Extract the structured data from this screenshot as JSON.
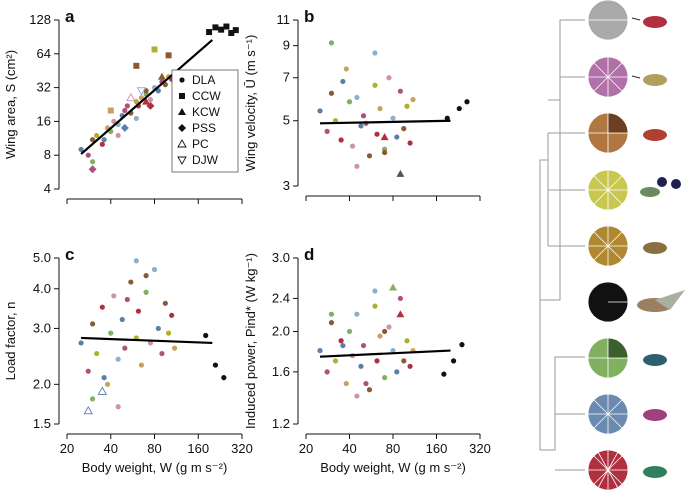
{
  "chart_data": [
    {
      "type": "scatter",
      "panel": "a",
      "ylabel": "Wing area, S (cm²)",
      "xlog": true,
      "ylog": true,
      "xlim": [
        20,
        320
      ],
      "xticks": [
        20,
        40,
        80,
        160,
        320
      ],
      "ylim": [
        4,
        128
      ],
      "yticks": [
        4,
        8,
        16,
        32,
        64,
        128
      ],
      "series": [
        {
          "name": "DLA",
          "marker": "circle",
          "x": [
            25,
            28,
            30,
            32,
            35,
            38,
            40,
            42,
            45,
            48,
            50,
            55,
            60,
            62,
            65,
            70,
            75,
            80,
            85,
            90,
            95,
            100,
            105,
            110,
            30,
            45,
            60,
            36,
            52,
            70
          ],
          "values": [
            9,
            8,
            11,
            12,
            10,
            14,
            13,
            16,
            15,
            18,
            20,
            19,
            24,
            22,
            26,
            28,
            25,
            32,
            30,
            36,
            34,
            40,
            38,
            44,
            7,
            12,
            17,
            11,
            22,
            30
          ],
          "colors": [
            "#5a7fa8",
            "#b0507a",
            "#8a5a30",
            "#b0b030",
            "#b03040",
            "#c8a060",
            "#80b060",
            "#d090b0",
            "#8ab0d0",
            "#5a7fa8",
            "#b0507a",
            "#8a5a30",
            "#b0b030",
            "#b03040",
            "#c8a060",
            "#80b060",
            "#d090b0",
            "#8ab0d0",
            "#5a7fa8",
            "#b0507a",
            "#8a5a30",
            "#b0b030",
            "#b03040",
            "#c8a060",
            "#80b060",
            "#d090b0",
            "#8ab0d0",
            "#5a7fa8",
            "#b0507a",
            "#8a5a30"
          ]
        },
        {
          "name": "CCW",
          "marker": "square",
          "x": [
            60,
            80,
            100,
            40
          ],
          "values": [
            50,
            70,
            62,
            20
          ],
          "colors": [
            "#8a5a30",
            "#b0b030",
            "#8a5a30",
            "#c8a060"
          ]
        },
        {
          "name": "KCW",
          "marker": "triangle",
          "x": [
            70,
            90
          ],
          "values": [
            24,
            40
          ],
          "colors": [
            "#b03040",
            "#8a5a30"
          ]
        },
        {
          "name": "PSS",
          "marker": "diamond",
          "x": [
            30,
            50,
            75
          ],
          "values": [
            6,
            14,
            22
          ],
          "colors": [
            "#b0507a",
            "#5a7fa8",
            "#b03040"
          ]
        },
        {
          "name": "PC",
          "marker": "tri-open",
          "x": [
            55
          ],
          "values": [
            26
          ],
          "colors": [
            "#d090b0"
          ]
        },
        {
          "name": "DJW",
          "marker": "tri-down-open",
          "x": [
            65
          ],
          "values": [
            30
          ],
          "colors": [
            "#8ab0d0"
          ]
        },
        {
          "marker": "square",
          "x": [
            190,
            210,
            230,
            250,
            270,
            290
          ],
          "values": [
            100,
            110,
            105,
            112,
            98,
            104
          ],
          "colors": [
            "#111",
            "#111",
            "#111",
            "#111",
            "#111",
            "#111"
          ]
        }
      ],
      "fit": {
        "x": [
          25,
          200
        ],
        "values": [
          8.2,
          85
        ]
      }
    },
    {
      "type": "scatter",
      "panel": "b",
      "ylabel": "Wing velocity, Ū (m s⁻¹)",
      "xlog": true,
      "ylog": true,
      "xlim": [
        20,
        320
      ],
      "xticks": [
        20,
        40,
        80,
        160,
        320
      ],
      "ylim": [
        3,
        11
      ],
      "yticks": [
        3,
        5,
        7,
        9,
        11
      ],
      "series": [
        {
          "marker": "circle",
          "x": [
            25,
            28,
            30,
            32,
            35,
            38,
            40,
            42,
            45,
            48,
            50,
            55,
            60,
            62,
            65,
            70,
            75,
            80,
            85,
            90,
            95,
            100,
            105,
            110,
            30,
            45,
            60,
            36,
            52,
            70
          ],
          "values": [
            5.4,
            4.6,
            6.2,
            5.0,
            4.3,
            7.5,
            5.8,
            4.1,
            6.0,
            4.8,
            5.2,
            3.8,
            6.6,
            4.5,
            5.5,
            4.0,
            7.0,
            5.1,
            4.4,
            6.3,
            4.7,
            5.6,
            4.2,
            5.9,
            9.2,
            3.5,
            8.5,
            6.8,
            4.9,
            3.9
          ],
          "colors": [
            "#5a7fa8",
            "#b0507a",
            "#8a5a30",
            "#b0b030",
            "#b03040",
            "#c8a060",
            "#80b060",
            "#d090b0",
            "#8ab0d0",
            "#5a7fa8",
            "#b0507a",
            "#8a5a30",
            "#b0b030",
            "#b03040",
            "#c8a060",
            "#80b060",
            "#d090b0",
            "#8ab0d0",
            "#5a7fa8",
            "#b0507a",
            "#8a5a30",
            "#b0b030",
            "#b03040",
            "#c8a060",
            "#80b060",
            "#d090b0",
            "#8ab0d0",
            "#5a7fa8",
            "#b0507a",
            "#8a5a30"
          ]
        },
        {
          "marker": "triangle",
          "x": [
            70,
            90
          ],
          "values": [
            4.4,
            3.3
          ],
          "colors": [
            "#b03040",
            "#555"
          ]
        },
        {
          "marker": "circle",
          "x": [
            190,
            230,
            260
          ],
          "values": [
            5.1,
            5.5,
            5.8
          ],
          "colors": [
            "#111",
            "#111",
            "#111"
          ]
        }
      ],
      "fit": {
        "x": [
          25,
          200
        ],
        "values": [
          4.9,
          5.0
        ]
      }
    },
    {
      "type": "scatter",
      "panel": "c",
      "ylabel": "Load factor, n",
      "xlabel": "Body weight, W (g m s⁻²)",
      "xlog": true,
      "ylog": true,
      "xlim": [
        20,
        320
      ],
      "xticks": [
        20,
        40,
        80,
        160,
        320
      ],
      "ylim": [
        1.5,
        5
      ],
      "yticks": [
        1.5,
        {
          "value": 2,
          "label": "2.0"
        },
        {
          "value": 3,
          "label": "3.0"
        },
        {
          "value": 4,
          "label": "4.0"
        },
        {
          "value": 5,
          "label": "5.0"
        }
      ],
      "series": [
        {
          "marker": "circle",
          "x": [
            25,
            28,
            30,
            32,
            35,
            38,
            40,
            42,
            45,
            48,
            50,
            55,
            60,
            62,
            65,
            70,
            75,
            80,
            85,
            90,
            95,
            100,
            105,
            110,
            30,
            45,
            60,
            36,
            52,
            70
          ],
          "values": [
            2.7,
            2.2,
            3.1,
            2.5,
            3.5,
            2.0,
            2.9,
            3.8,
            2.4,
            3.2,
            2.6,
            4.2,
            2.8,
            3.4,
            2.3,
            3.9,
            2.7,
            4.6,
            3.0,
            2.5,
            3.6,
            2.9,
            3.3,
            2.6,
            1.8,
            1.7,
            4.9,
            2.1,
            3.7,
            4.4
          ],
          "colors": [
            "#5a7fa8",
            "#b0507a",
            "#8a5a30",
            "#b0b030",
            "#b03040",
            "#c8a060",
            "#80b060",
            "#d090b0",
            "#8ab0d0",
            "#5a7fa8",
            "#b0507a",
            "#8a5a30",
            "#b0b030",
            "#b03040",
            "#c8a060",
            "#80b060",
            "#d090b0",
            "#8ab0d0",
            "#5a7fa8",
            "#b0507a",
            "#8a5a30",
            "#b0b030",
            "#b03040",
            "#c8a060",
            "#80b060",
            "#d090b0",
            "#8ab0d0",
            "#5a7fa8",
            "#b0507a",
            "#8a5a30"
          ]
        },
        {
          "marker": "tri-open",
          "x": [
            28,
            35
          ],
          "values": [
            1.65,
            1.9
          ],
          "colors": [
            "#5a7fa8",
            "#5a7fa8"
          ]
        },
        {
          "marker": "circle",
          "x": [
            180,
            210,
            240
          ],
          "values": [
            2.85,
            2.3,
            2.1
          ],
          "colors": [
            "#111",
            "#111",
            "#111"
          ]
        }
      ],
      "fit": {
        "x": [
          25,
          200
        ],
        "values": [
          2.8,
          2.7
        ]
      }
    },
    {
      "type": "scatter",
      "panel": "d",
      "ylabel": "Induced power, Pind* (W kg⁻¹)",
      "xlabel": "Body weight, W (g m s⁻²)",
      "xlog": true,
      "ylog": true,
      "xlim": [
        20,
        320
      ],
      "xticks": [
        20,
        40,
        80,
        160,
        320
      ],
      "ylim": [
        1.2,
        3
      ],
      "yticks": [
        1.2,
        1.6,
        {
          "value": 2,
          "label": "2.0"
        },
        2.4,
        {
          "value": 3,
          "label": "3.0"
        }
      ],
      "series": [
        {
          "marker": "circle",
          "x": [
            25,
            28,
            30,
            32,
            35,
            38,
            40,
            42,
            45,
            48,
            50,
            55,
            60,
            62,
            65,
            70,
            75,
            80,
            85,
            90,
            95,
            100,
            105,
            110,
            30,
            45,
            60,
            36,
            52,
            70
          ],
          "values": [
            1.8,
            1.6,
            2.1,
            1.7,
            1.9,
            1.5,
            2.0,
            1.75,
            2.2,
            1.65,
            1.85,
            1.45,
            2.3,
            1.7,
            1.95,
            1.55,
            2.05,
            1.8,
            1.6,
            2.4,
            1.7,
            1.9,
            1.65,
            1.8,
            2.2,
            1.4,
            2.5,
            1.85,
            1.5,
            2.0
          ],
          "colors": [
            "#5a7fa8",
            "#b0507a",
            "#8a5a30",
            "#b0b030",
            "#b03040",
            "#c8a060",
            "#80b060",
            "#d090b0",
            "#8ab0d0",
            "#5a7fa8",
            "#b0507a",
            "#8a5a30",
            "#b0b030",
            "#b03040",
            "#c8a060",
            "#80b060",
            "#d090b0",
            "#8ab0d0",
            "#5a7fa8",
            "#b0507a",
            "#8a5a30",
            "#b0b030",
            "#b03040",
            "#c8a060",
            "#80b060",
            "#d090b0",
            "#8ab0d0",
            "#5a7fa8",
            "#b0507a",
            "#8a5a30"
          ]
        },
        {
          "marker": "triangle",
          "x": [
            80,
            90
          ],
          "values": [
            2.55,
            2.2
          ],
          "colors": [
            "#80b060",
            "#b03040"
          ]
        },
        {
          "marker": "circle",
          "x": [
            180,
            210,
            240
          ],
          "values": [
            1.58,
            1.7,
            1.86
          ],
          "colors": [
            "#111",
            "#111",
            "#111"
          ]
        }
      ],
      "fit": {
        "x": [
          25,
          200
        ],
        "values": [
          1.74,
          1.8
        ]
      }
    }
  ]
}
